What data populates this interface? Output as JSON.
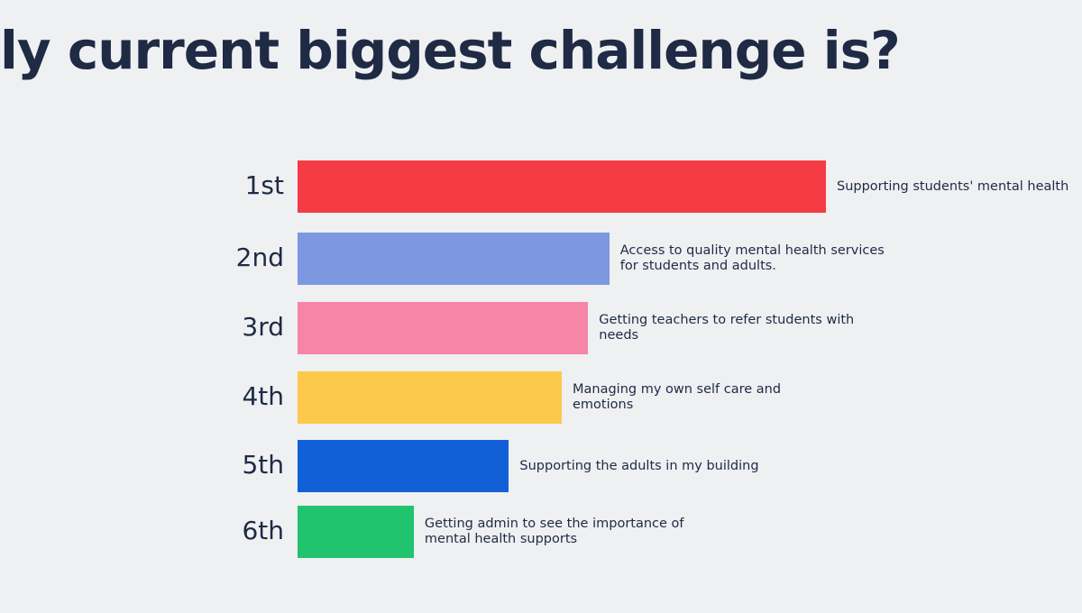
{
  "chart_data": {
    "type": "bar",
    "title": "ly current biggest challenge is?",
    "categories": [
      "1st",
      "2nd",
      "3rd",
      "4th",
      "5th",
      "6th"
    ],
    "labels": [
      "Supporting students' mental health",
      "Access to quality mental health services for students and adults.",
      "Getting teachers to refer students with needs",
      "Managing my own self care and emotions",
      "Supporting the adults in my building",
      "Getting admin to see the importance of mental health supports"
    ],
    "values": [
      100,
      59,
      55,
      50,
      40,
      22
    ],
    "colors": [
      "#f53b44",
      "#7b98e0",
      "#f685a8",
      "#fdc94a",
      "#1260d8",
      "#22c36e"
    ],
    "xlim": [
      0,
      100
    ]
  }
}
